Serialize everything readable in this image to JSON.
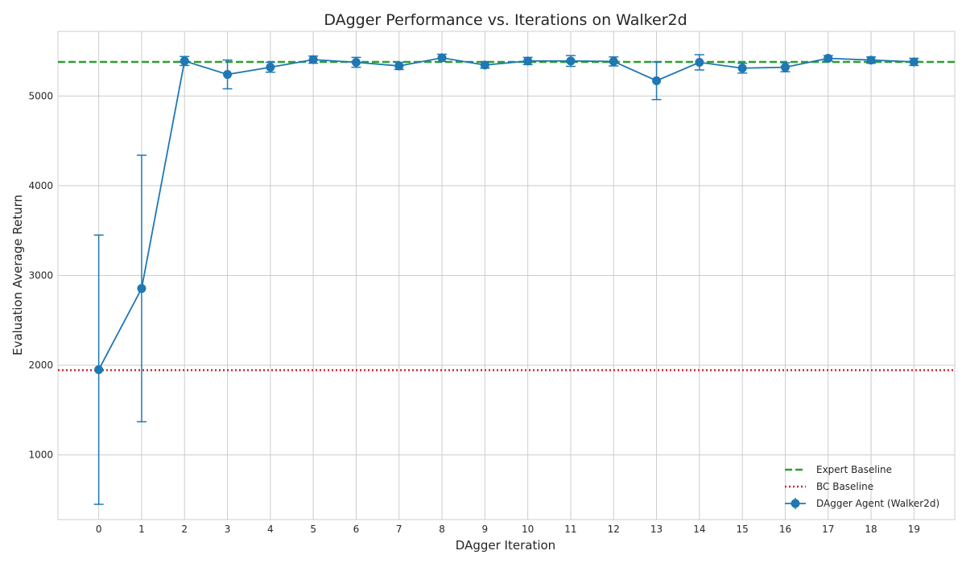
{
  "chart_data": {
    "type": "line",
    "title": "DAgger Performance vs. Iterations on Walker2d",
    "xlabel": "DAgger Iteration",
    "ylabel": "Evaluation Average Return",
    "xlim": [
      -0.95,
      19.95
    ],
    "ylim": [
      280,
      5720
    ],
    "x_ticks": [
      0,
      1,
      2,
      3,
      4,
      5,
      6,
      7,
      8,
      9,
      10,
      11,
      12,
      13,
      14,
      15,
      16,
      17,
      18,
      19
    ],
    "y_ticks": [
      1000,
      2000,
      3000,
      4000,
      5000
    ],
    "grid": true,
    "legend_position": "lower-right",
    "series": [
      {
        "name": "DAgger Agent (Walker2d)",
        "color": "#1f77b4",
        "style": "line-with-markers-and-errorbars",
        "x": [
          0,
          1,
          2,
          3,
          4,
          5,
          6,
          7,
          8,
          9,
          10,
          11,
          12,
          13,
          14,
          15,
          16,
          17,
          18,
          19
        ],
        "y": [
          1950,
          2855,
          5390,
          5240,
          5320,
          5405,
          5375,
          5335,
          5425,
          5345,
          5390,
          5390,
          5385,
          5170,
          5375,
          5310,
          5320,
          5420,
          5400,
          5380
        ],
        "yerr": [
          1500,
          1485,
          50,
          160,
          55,
          40,
          55,
          40,
          40,
          35,
          40,
          60,
          50,
          210,
          85,
          55,
          50,
          30,
          35,
          40
        ]
      }
    ],
    "baselines": [
      {
        "name": "Expert Baseline",
        "value": 5380,
        "color": "#2ca02c",
        "style": "dashed"
      },
      {
        "name": "BC Baseline",
        "value": 1945,
        "color": "#d62728",
        "style": "dotted"
      }
    ]
  }
}
